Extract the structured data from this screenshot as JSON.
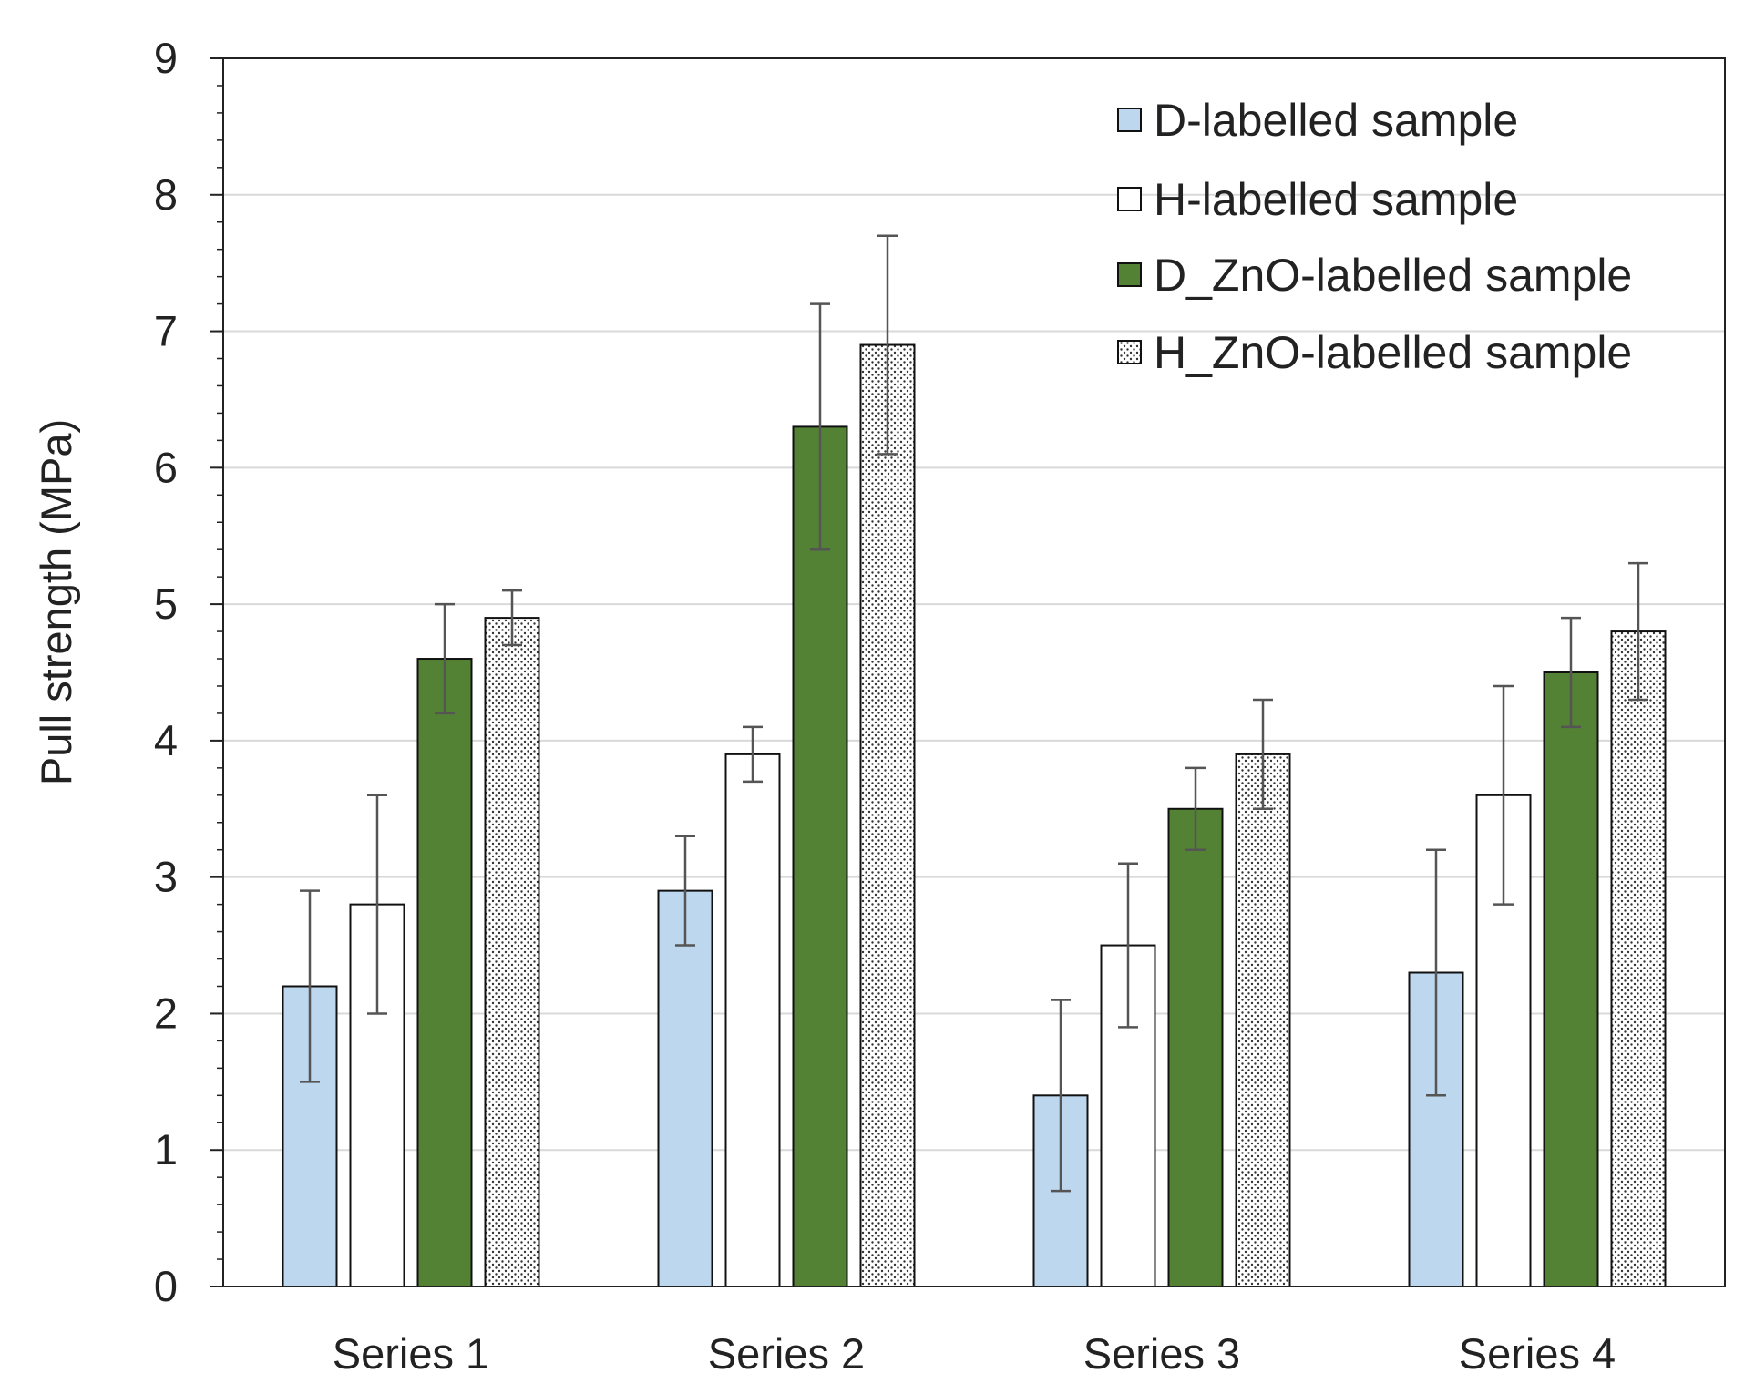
{
  "chart_data": {
    "type": "bar",
    "title": "",
    "xlabel": "",
    "ylabel": "Pull strength (MPa)",
    "ylim": [
      0,
      9
    ],
    "yticks": [
      "0",
      "1",
      "2",
      "3",
      "4",
      "5",
      "6",
      "7",
      "8",
      "9"
    ],
    "grid": "horizontal",
    "legend_position": "top-right",
    "categories": [
      "Series 1",
      "Series 2",
      "Series 3",
      "Series 4"
    ],
    "series": [
      {
        "name": "D-labelled sample",
        "color": "#bdd7ee",
        "pattern": "solid",
        "values": [
          2.2,
          2.9,
          1.4,
          2.3
        ],
        "errors": [
          0.7,
          0.4,
          0.7,
          0.9
        ]
      },
      {
        "name": "H-labelled sample",
        "color": "#ffffff",
        "pattern": "solid",
        "values": [
          2.8,
          3.9,
          2.5,
          3.6
        ],
        "errors": [
          0.8,
          0.2,
          0.6,
          0.8
        ]
      },
      {
        "name": "D_ZnO-labelled sample",
        "color": "#548235",
        "pattern": "solid",
        "values": [
          4.6,
          6.3,
          3.5,
          4.5
        ],
        "errors": [
          0.4,
          0.9,
          0.3,
          0.4
        ]
      },
      {
        "name": "H_ZnO-labelled sample",
        "color": "#ffffff",
        "pattern": "dotted",
        "values": [
          4.9,
          6.9,
          3.9,
          4.8
        ],
        "errors": [
          0.2,
          0.8,
          0.4,
          0.5
        ]
      }
    ]
  }
}
